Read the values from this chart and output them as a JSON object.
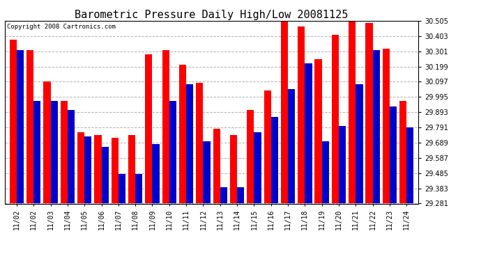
{
  "title": "Barometric Pressure Daily High/Low 20081125",
  "copyright": "Copyright 2008 Cartronics.com",
  "dates": [
    "11/02",
    "11/02",
    "11/03",
    "11/04",
    "11/05",
    "11/06",
    "11/07",
    "11/08",
    "11/09",
    "11/10",
    "11/11",
    "11/12",
    "11/13",
    "11/14",
    "11/15",
    "11/16",
    "11/17",
    "11/18",
    "11/19",
    "11/20",
    "11/21",
    "11/22",
    "11/23",
    "11/24"
  ],
  "highs": [
    30.38,
    30.31,
    30.1,
    29.97,
    29.76,
    29.74,
    29.72,
    29.74,
    30.28,
    30.31,
    30.21,
    30.09,
    29.78,
    29.74,
    29.91,
    30.04,
    30.52,
    30.47,
    30.25,
    30.41,
    30.5,
    30.49,
    30.32,
    29.97
  ],
  "lows": [
    30.31,
    29.97,
    29.97,
    29.91,
    29.73,
    29.66,
    29.48,
    29.48,
    29.68,
    29.97,
    30.08,
    29.7,
    29.39,
    29.39,
    29.76,
    29.86,
    30.05,
    30.22,
    29.7,
    29.8,
    30.08,
    30.31,
    29.93,
    29.79
  ],
  "ymin": 29.281,
  "ymax": 30.505,
  "yticks": [
    29.281,
    29.383,
    29.485,
    29.587,
    29.689,
    29.791,
    29.893,
    29.995,
    30.097,
    30.199,
    30.301,
    30.403,
    30.505
  ],
  "high_color": "#ff0000",
  "low_color": "#0000cc",
  "bg_color": "#ffffff",
  "grid_color": "#aaaaaa",
  "title_fontsize": 11,
  "tick_fontsize": 7,
  "copyright_fontsize": 6.5
}
